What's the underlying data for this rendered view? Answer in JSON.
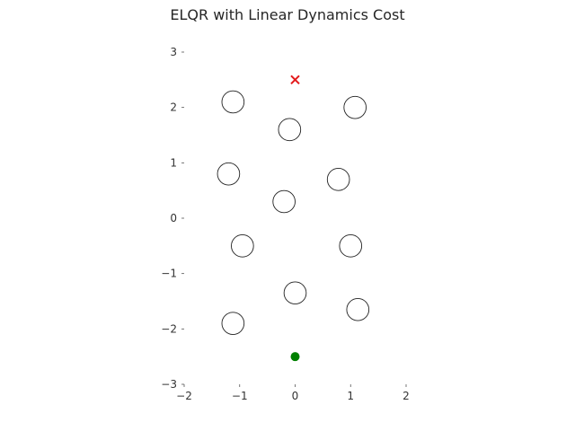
{
  "chart_data": {
    "type": "scatter",
    "title": "ELQR with Linear Dynamics Cost",
    "xlabel": "",
    "ylabel": "",
    "xlim": [
      -2,
      2
    ],
    "ylim": [
      -3,
      3
    ],
    "xticks": [
      -2,
      -1,
      0,
      1,
      2
    ],
    "xtick_labels": [
      "−2",
      "−1",
      "0",
      "1",
      "2"
    ],
    "yticks": [
      -3,
      -2,
      -1,
      0,
      1,
      2,
      3
    ],
    "ytick_labels": [
      "−3",
      "−2",
      "−1",
      "0",
      "1",
      "2",
      "3"
    ],
    "grid": false,
    "obstacles": [
      {
        "x": -1.12,
        "y": 2.1,
        "r": 0.2
      },
      {
        "x": 1.08,
        "y": 2.0,
        "r": 0.2
      },
      {
        "x": -0.1,
        "y": 1.6,
        "r": 0.2
      },
      {
        "x": -1.2,
        "y": 0.8,
        "r": 0.2
      },
      {
        "x": 0.78,
        "y": 0.7,
        "r": 0.2
      },
      {
        "x": -0.2,
        "y": 0.3,
        "r": 0.2
      },
      {
        "x": -0.95,
        "y": -0.5,
        "r": 0.2
      },
      {
        "x": 1.0,
        "y": -0.5,
        "r": 0.2
      },
      {
        "x": 0.0,
        "y": -1.35,
        "r": 0.2
      },
      {
        "x": -1.12,
        "y": -1.9,
        "r": 0.2
      },
      {
        "x": 1.13,
        "y": -1.65,
        "r": 0.2
      }
    ],
    "start": {
      "x": 0.0,
      "y": -2.5,
      "color": "#008000"
    },
    "goal": {
      "x": 0.0,
      "y": 2.5,
      "color": "#e31a1c"
    }
  }
}
